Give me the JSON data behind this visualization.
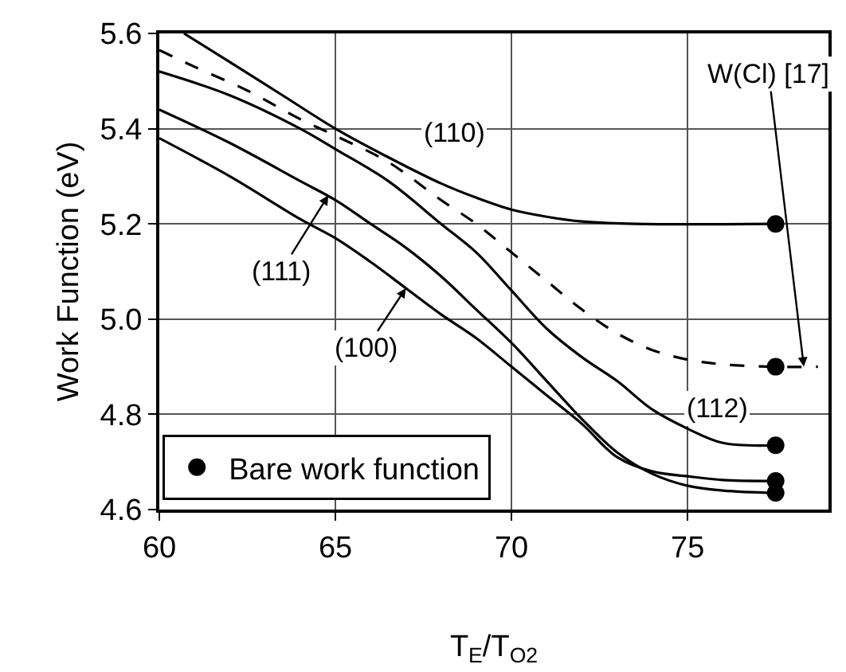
{
  "chart_data": {
    "type": "line",
    "xlabel": "T$_{E}$/T$_{O2}$",
    "ylabel": "Work Function (eV)",
    "xlim": [
      60,
      79
    ],
    "xticks": [
      60,
      65,
      70,
      75
    ],
    "ylim": [
      4.6,
      5.6
    ],
    "yticks": [
      {
        "value": 4.6,
        "label": "4.6"
      },
      {
        "value": 4.8,
        "label": "4.8"
      },
      {
        "value": 5.0,
        "label": "5.0"
      },
      {
        "value": 5.2,
        "label": "5.2"
      },
      {
        "value": 5.4,
        "label": "5.4"
      },
      {
        "value": 5.6,
        "label": "5.6"
      }
    ],
    "grid": true,
    "legend": "bottom left",
    "marker": "none",
    "series": [
      {
        "color": "#000000",
        "x": [
          60.7,
          62,
          63.5,
          65,
          66.5,
          68,
          69,
          70,
          71,
          72,
          73.5,
          77.5
        ],
        "values": [
          5.6,
          5.54,
          5.47,
          5.4,
          5.34,
          5.285,
          5.255,
          5.23,
          5.215,
          5.205,
          5.2,
          5.2
        ]
      },
      {
        "color": "#000000",
        "line_style": "dashed",
        "x": [
          60,
          61,
          62.5,
          64,
          65,
          66.5,
          68,
          69,
          70,
          71,
          72,
          73,
          74,
          75,
          76,
          77.5,
          78.7
        ],
        "values": [
          5.565,
          5.53,
          5.48,
          5.42,
          5.385,
          5.33,
          5.25,
          5.2,
          5.14,
          5.08,
          5.02,
          4.97,
          4.935,
          4.915,
          4.905,
          4.9,
          4.9
        ]
      },
      {
        "color": "#000000",
        "x": [
          60,
          62,
          64,
          65,
          66.5,
          68,
          69,
          70,
          71,
          72,
          73,
          74,
          75,
          76,
          77.5
        ],
        "values": [
          5.52,
          5.47,
          5.4,
          5.357,
          5.29,
          5.2,
          5.14,
          5.06,
          4.98,
          4.92,
          4.87,
          4.81,
          4.77,
          4.74,
          4.735
        ]
      },
      {
        "color": "#000000",
        "x": [
          60,
          62,
          64,
          65,
          66,
          67,
          68,
          69,
          70,
          71,
          72,
          73,
          74,
          75,
          76,
          77.5
        ],
        "values": [
          5.44,
          5.37,
          5.29,
          5.25,
          5.2,
          5.15,
          5.09,
          5.02,
          4.95,
          4.87,
          4.79,
          4.72,
          4.675,
          4.65,
          4.64,
          4.635
        ]
      },
      {
        "color": "#000000",
        "x": [
          60,
          62,
          64,
          65,
          66,
          67,
          68,
          69,
          70,
          71,
          72,
          73,
          74,
          75,
          76,
          77.5
        ],
        "values": [
          5.38,
          5.3,
          5.21,
          5.17,
          5.12,
          5.065,
          5.01,
          4.96,
          4.9,
          4.84,
          4.78,
          4.71,
          4.68,
          4.67,
          4.662,
          4.66
        ]
      },
      {
        "type": "scatter",
        "name": "Bare work function",
        "color": "#000000",
        "marker": "circle",
        "x": [
          77.5,
          77.5,
          77.5,
          77.5,
          77.5
        ],
        "values": [
          5.2,
          4.9,
          4.735,
          4.66,
          4.635
        ]
      }
    ],
    "annotations": [
      {
        "text": "(110)",
        "x": 68,
        "y": 5.285
      },
      {
        "text": "(111)",
        "x": 64.8,
        "y": 5.26
      },
      {
        "text": "(100)",
        "x": 67.0,
        "y": 5.065
      },
      {
        "text": "(112)",
        "x": 75,
        "y": 4.77
      },
      {
        "text": "W(Cl) [17]",
        "x": 78.3,
        "y": 4.9
      }
    ]
  }
}
